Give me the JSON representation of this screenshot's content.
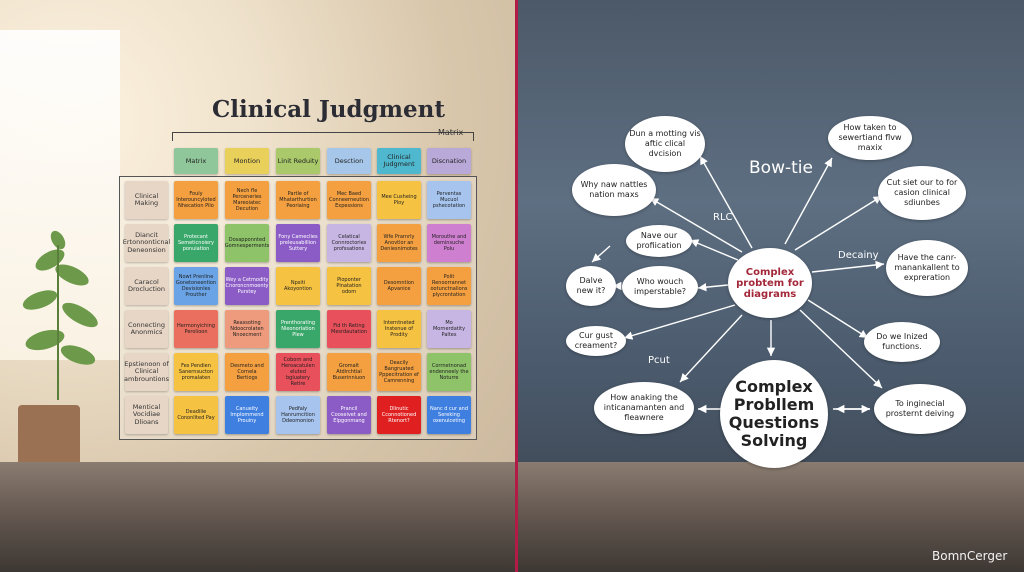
{
  "left_panel": {
    "title": "Clinical Judgment",
    "matrix_tag": "Matrix",
    "headers": [
      "Matrix",
      "Montion",
      "Linit Reduity",
      "Desction",
      "Clinical Judgment",
      "Discnation"
    ],
    "header_colors": [
      "#8fc79a",
      "#e8d05a",
      "#a9c96a",
      "#a7c7ea",
      "#4fb8cf",
      "#b9a9d9"
    ],
    "rows": [
      {
        "label": "Clinical Making",
        "cells": [
          {
            "text": "Fouly Interouncyloted Nhecation Pilo",
            "color": "#f4a040"
          },
          {
            "text": "Nech fle Perceneries Mareoiatec Decution",
            "color": "#f4a040"
          },
          {
            "text": "Partle of Mhatarthurtion Peoriaing",
            "color": "#f4a040"
          },
          {
            "text": "Mec Baed Conneerneution Expessions",
            "color": "#f4a040"
          },
          {
            "text": "Mee Cusheing Ploy",
            "color": "#f5c242"
          },
          {
            "text": "Perventas Mucuol pshecotation",
            "color": "#a6c4ee"
          }
        ]
      },
      {
        "label": "Diancit Ertonnonticnal Deneonsion",
        "cells": [
          {
            "text": "Protecant Semeticnoiery ponuiation",
            "color": "#3aa76a"
          },
          {
            "text": "Dosapponnted Gomnesperments",
            "color": "#8ec36a"
          },
          {
            "text": "Fony Cameclies preleusabillion Suttery",
            "color": "#8b5cc6"
          },
          {
            "text": "Celatical Connroctories profssations",
            "color": "#c7b6e4"
          },
          {
            "text": "Wfe Prarnrly Anovtlor an Deniesnimotes",
            "color": "#f4a040"
          },
          {
            "text": "Morouthe and deminsuche Polu",
            "color": "#cf7fcf"
          }
        ]
      },
      {
        "label": "Caracol Drocluction",
        "cells": [
          {
            "text": "Nowt Prenline Gonetoneention Devisionles Prouther",
            "color": "#6aa4e6"
          },
          {
            "text": "Wey a Cetmodity Cnoroncnmoenty Purstey",
            "color": "#8b5cc6"
          },
          {
            "text": "Npsiti Akoyontion",
            "color": "#f5c242"
          },
          {
            "text": "Pioponter Pinatation odom",
            "color": "#f5c242"
          },
          {
            "text": "Desomntion Apvanice",
            "color": "#f4a040"
          },
          {
            "text": "Polit Renoorrannet ootunctnalions plycrontation",
            "color": "#f4a040"
          }
        ]
      },
      {
        "label": "Connecting Anonmics",
        "cells": [
          {
            "text": "Hermonyiching Perolioon",
            "color": "#ea6f5e"
          },
          {
            "text": "Reassoting Ndoocrolaten Nnoecment",
            "color": "#ee9b7d"
          },
          {
            "text": "Prenthorating Nleonorlation Plew",
            "color": "#3aa76a"
          },
          {
            "text": "Fid th Reting Mesrdautation",
            "color": "#e8505b"
          },
          {
            "text": "Interntneted Instenue of Prodity",
            "color": "#f5c242"
          },
          {
            "text": "Mo Mornerdatity Paltes",
            "color": "#c7b6e4"
          }
        ]
      },
      {
        "label": "Epstienoon of Clinical ambrountions",
        "cells": [
          {
            "text": "Fes Pendien Sanernsucton promalaten",
            "color": "#f5c242"
          },
          {
            "text": "Desmeto and Cornela Bertiogs",
            "color": "#f4a040"
          },
          {
            "text": "Coborn and Heroacatulen eluted bgluatery Retire",
            "color": "#e8505b"
          },
          {
            "text": "Gromalt Atdirchtial Buserinniuon",
            "color": "#f4a040"
          },
          {
            "text": "Deacily Bangruated Pppecitration ef Camrenning",
            "color": "#f4a040"
          },
          {
            "text": "Corrnetnonad endenneely the Noturre",
            "color": "#8ec36a"
          }
        ]
      },
      {
        "label": "Mentical Vocidiae Dlioans",
        "cells": [
          {
            "text": "Deadilie Cononlited Pay",
            "color": "#f5c242"
          },
          {
            "text": "Canueity Implommend Prouiny",
            "color": "#3f7fe0"
          },
          {
            "text": "Pedfaly Hanrumcition Ddeomonion",
            "color": "#a6c4ee"
          },
          {
            "text": "Prancil Cooseivet and Elpgonmang",
            "color": "#8b5cc6"
          },
          {
            "text": "Dlinutic Cconnotioned Rtenort?",
            "color": "#e02020"
          },
          {
            "text": "Nanc d cur and Sereking oxenuiceting",
            "color": "#3f7fe0"
          }
        ]
      }
    ]
  },
  "right_panel": {
    "label_bow_tie": "Bow-tie",
    "label_rlc": "RLC",
    "label_decainy": "Decainy",
    "label_pcut": "Pcut",
    "hub": "Complex probtem for diagrams",
    "big_node": "Complex Probllem Questions Solving",
    "nodes": {
      "top_center": "Dun a motting vis aftic clical dvcision",
      "top_left": "Why naw nattles nation maxs",
      "mid_left_upper": "Nave our profiication",
      "mid_left_a": "Dalve new it?",
      "mid_left_b": "Who wouch imperstable?",
      "lower_left": "Cur gust creament?",
      "bottom_left": "How anaking the inticanamanten and fleawnere",
      "top_right": "How taken to sewertiand flvw maxix",
      "right_upper": "Cut siet our to for casion clinical sdiunbes",
      "right_mid": "Have the canr-manankallent to expreration",
      "right_lower": "Do we Inized functions.",
      "bottom_right": "To inginecial prosternt deiving"
    }
  },
  "watermark": "BomnCerger"
}
